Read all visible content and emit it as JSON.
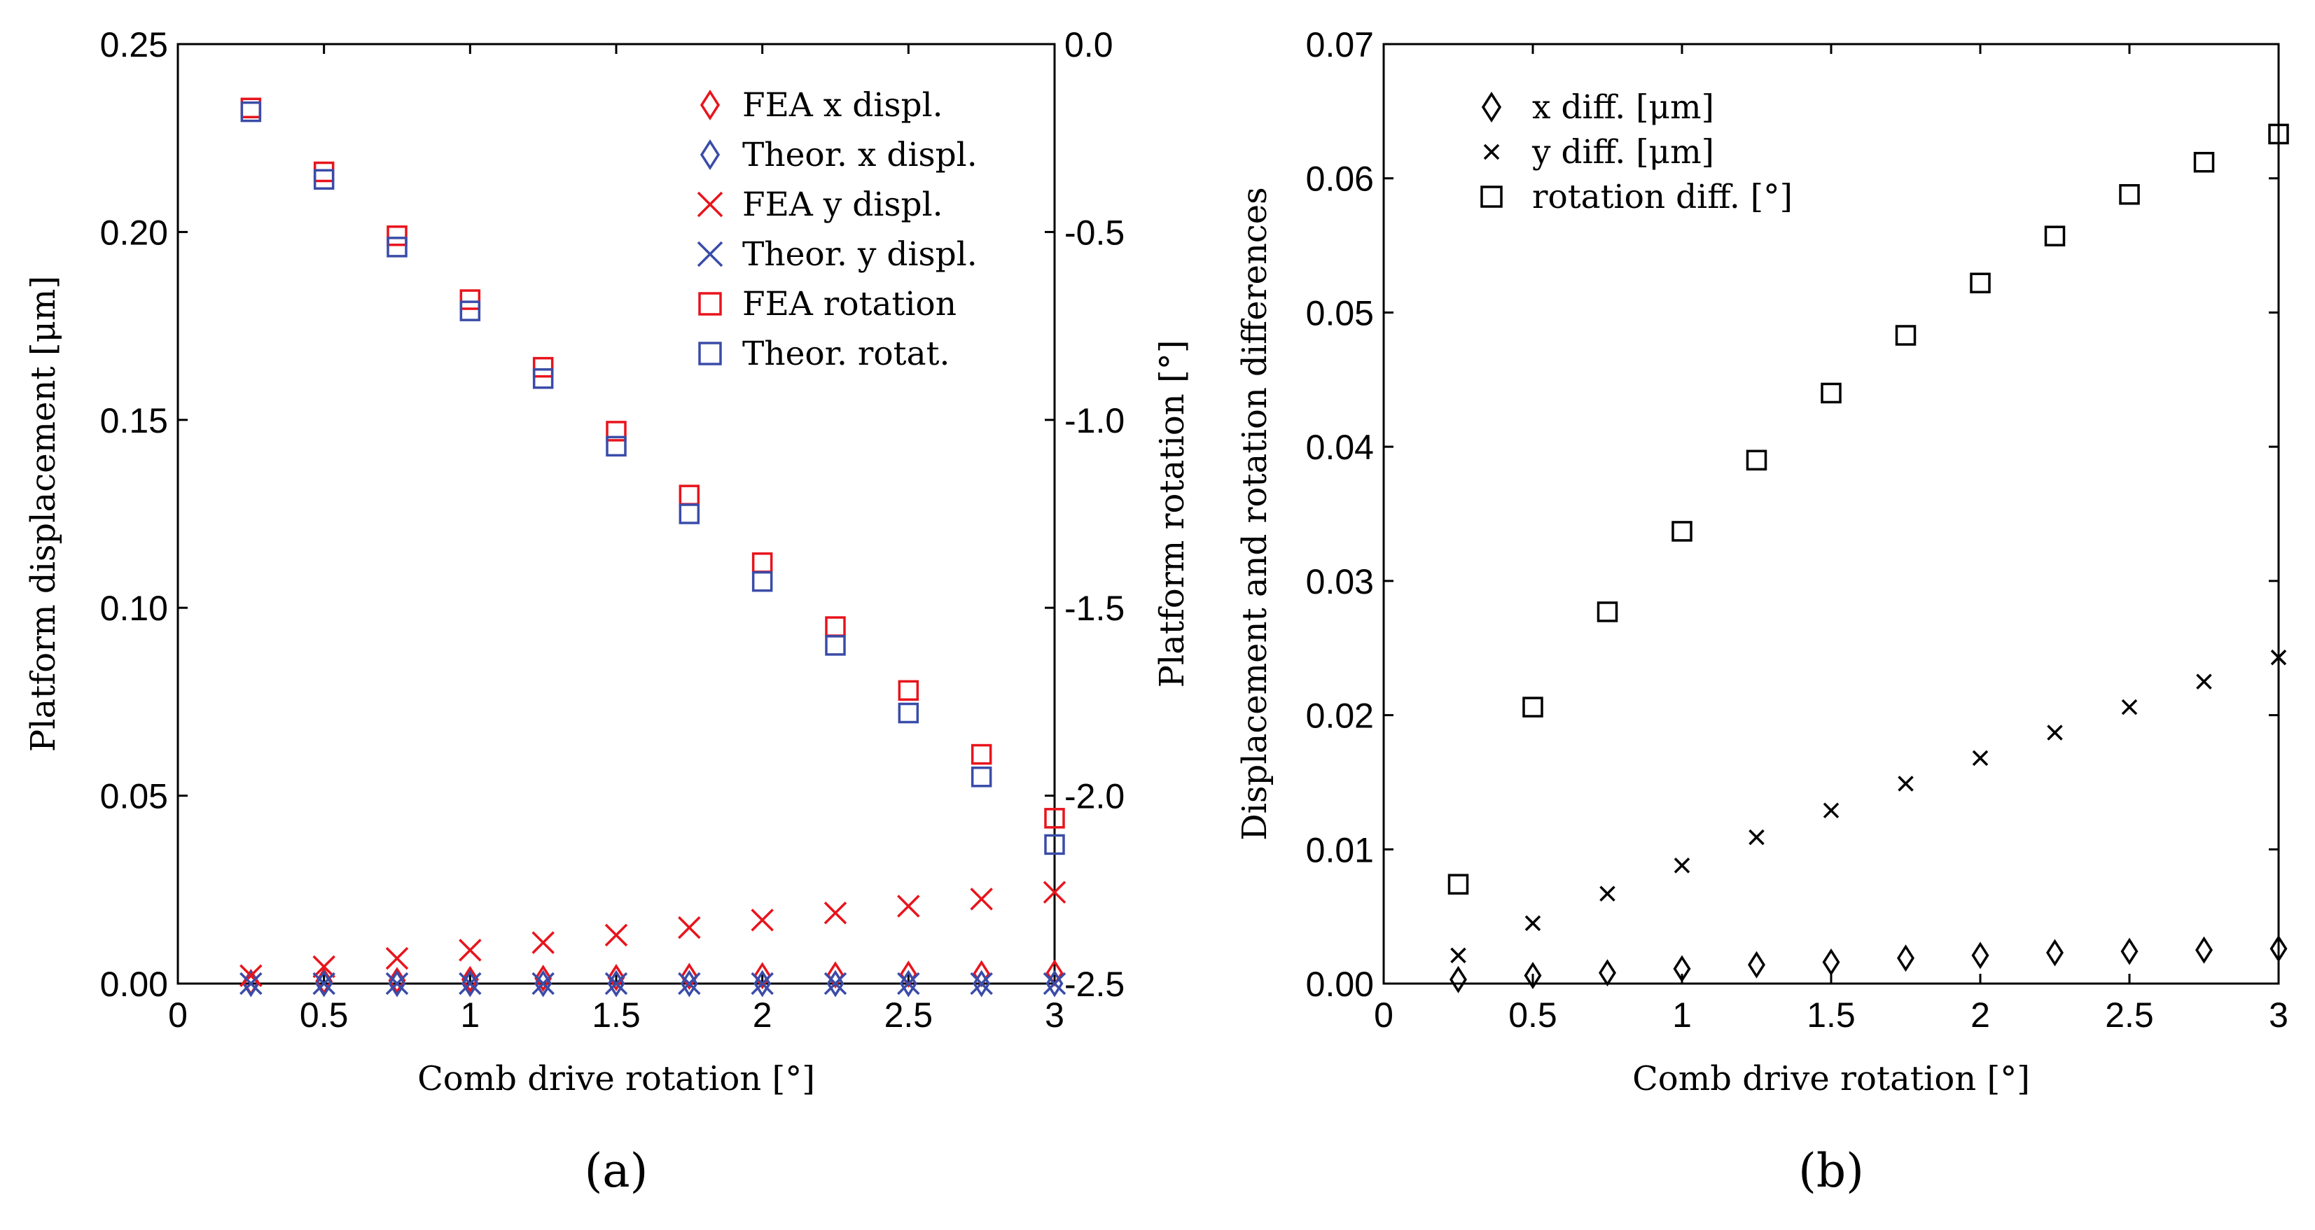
{
  "chart_data": [
    {
      "type": "scatter",
      "panel_label": "(a)",
      "xlabel": "Comb drive rotation [°]",
      "ylabel": "Platform displacement [μm]",
      "y2label": "Platform rotation [°]",
      "xlim": [
        0,
        3
      ],
      "ylim": [
        0,
        0.25
      ],
      "y2lim": [
        -2.5,
        0
      ],
      "x_ticks": [
        "0",
        "0.5",
        "1",
        "1.5",
        "2",
        "2.5",
        "3"
      ],
      "y_ticks": [
        "0.00",
        "0.05",
        "0.10",
        "0.15",
        "0.20",
        "0.25"
      ],
      "y2_ticks": [
        "-2.5",
        "-2.0",
        "-1.5",
        "-1.0",
        "-0.5",
        "0.0"
      ],
      "x": [
        0.25,
        0.5,
        0.75,
        1.0,
        1.25,
        1.5,
        1.75,
        2.0,
        2.25,
        2.5,
        2.75,
        3.0
      ],
      "series": [
        {
          "name": "FEA x displ.",
          "marker": "diamond",
          "color": "#e8141c",
          "axis": "left",
          "values": [
            0.0003,
            0.0006,
            0.0008,
            0.0011,
            0.0014,
            0.0016,
            0.0019,
            0.0021,
            0.0023,
            0.0025,
            0.0026,
            0.0028
          ]
        },
        {
          "name": "Theor. x displ.",
          "marker": "diamond",
          "color": "#3a4ca8",
          "axis": "left",
          "values": [
            0.0,
            0.0,
            0.0,
            0.0,
            0.0,
            0.0,
            0.0,
            0.0,
            0.0,
            0.0,
            0.0,
            0.0
          ]
        },
        {
          "name": "FEA y displ.",
          "marker": "x",
          "color": "#e8141c",
          "axis": "left",
          "values": [
            0.0021,
            0.0045,
            0.0067,
            0.0089,
            0.0109,
            0.0129,
            0.0149,
            0.0169,
            0.0188,
            0.0206,
            0.0225,
            0.0243
          ]
        },
        {
          "name": "Theor. y displ.",
          "marker": "x",
          "color": "#3a4ca8",
          "axis": "left",
          "values": [
            0.0,
            0.0,
            0.0,
            0.0,
            0.0,
            0.0,
            0.0,
            0.0,
            0.0,
            0.0,
            0.0,
            0.0
          ]
        },
        {
          "name": "FEA rotation",
          "marker": "square",
          "color": "#e8141c",
          "axis": "right",
          "values": [
            -0.17,
            -0.34,
            -0.51,
            -0.68,
            -0.86,
            -1.03,
            -1.2,
            -1.38,
            -1.55,
            -1.72,
            -1.89,
            -2.06
          ]
        },
        {
          "name": "Theor. rotat.",
          "marker": "square",
          "color": "#3a4ca8",
          "axis": "right",
          "values": [
            -0.18,
            -0.36,
            -0.54,
            -0.71,
            -0.89,
            -1.07,
            -1.25,
            -1.43,
            -1.6,
            -1.78,
            -1.95,
            -2.13
          ]
        }
      ]
    },
    {
      "type": "scatter",
      "panel_label": "(b)",
      "xlabel": "Comb drive rotation [°]",
      "ylabel": "Displacement and rotation differences",
      "xlim": [
        0,
        3
      ],
      "ylim": [
        0,
        0.07
      ],
      "x_ticks": [
        "0",
        "0.5",
        "1",
        "1.5",
        "2",
        "2.5",
        "3"
      ],
      "y_ticks": [
        "0.00",
        "0.01",
        "0.02",
        "0.03",
        "0.04",
        "0.05",
        "0.06",
        "0.07"
      ],
      "x": [
        0.25,
        0.5,
        0.75,
        1.0,
        1.25,
        1.5,
        1.75,
        2.0,
        2.25,
        2.5,
        2.75,
        3.0
      ],
      "series": [
        {
          "name": "x diff. [μm]",
          "marker": "diamond",
          "color": "#000000",
          "values": [
            0.0003,
            0.0006,
            0.0008,
            0.0011,
            0.0014,
            0.0016,
            0.0019,
            0.0021,
            0.0023,
            0.0024,
            0.0025,
            0.0026
          ]
        },
        {
          "name": "y diff. [μm]",
          "marker": "x",
          "color": "#000000",
          "values": [
            0.0021,
            0.0045,
            0.0067,
            0.0088,
            0.0109,
            0.0129,
            0.0149,
            0.0168,
            0.0187,
            0.0206,
            0.0225,
            0.0243
          ]
        },
        {
          "name": "rotation diff. [°]",
          "marker": "square",
          "color": "#000000",
          "values": [
            0.0074,
            0.0206,
            0.0277,
            0.0337,
            0.039,
            0.044,
            0.0483,
            0.0522,
            0.0557,
            0.0588,
            0.0612,
            0.0633
          ]
        }
      ]
    }
  ]
}
